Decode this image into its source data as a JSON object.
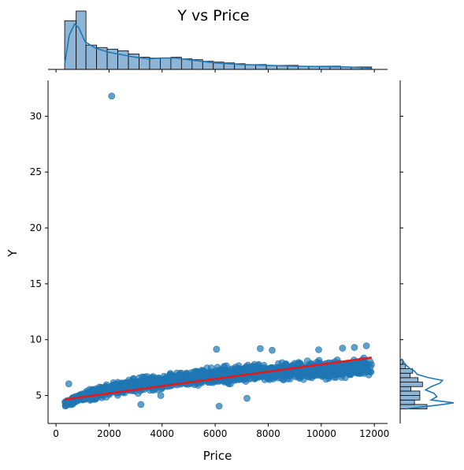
{
  "chart_data": {
    "type": "scatter",
    "title": "Y vs Price",
    "xlabel": "Price",
    "ylabel": "Y",
    "xlim": [
      -300,
      12500
    ],
    "ylim": [
      2.5,
      33.2
    ],
    "xticks": [
      0,
      2000,
      4000,
      6000,
      8000,
      10000,
      12000
    ],
    "yticks": [
      5,
      10,
      15,
      20,
      25,
      30
    ],
    "colors": {
      "points": "#1f77b4",
      "regression": "#e41a1c",
      "hist_fill": "#8fb5d6",
      "kde": "#1f77b4"
    },
    "regression": {
      "x": [
        326,
        11900
      ],
      "y": [
        4.65,
        8.4
      ]
    },
    "outliers": [
      {
        "x": 2100,
        "y": 31.8
      },
      {
        "x": 6050,
        "y": 9.15
      },
      {
        "x": 7700,
        "y": 9.2
      },
      {
        "x": 8150,
        "y": 9.05
      },
      {
        "x": 9900,
        "y": 9.1
      },
      {
        "x": 10800,
        "y": 9.25
      },
      {
        "x": 11250,
        "y": 9.3
      },
      {
        "x": 11700,
        "y": 9.45
      },
      {
        "x": 3200,
        "y": 4.2
      },
      {
        "x": 6150,
        "y": 4.05
      },
      {
        "x": 7200,
        "y": 4.75
      },
      {
        "x": 480,
        "y": 6.05
      },
      {
        "x": 3950,
        "y": 5.0
      }
    ],
    "band": [
      {
        "x": 330,
        "lo": 3.9,
        "hi": 4.6
      },
      {
        "x": 1000,
        "lo": 4.3,
        "hi": 5.5
      },
      {
        "x": 2000,
        "lo": 4.7,
        "hi": 6.3
      },
      {
        "x": 3000,
        "lo": 5.0,
        "hi": 6.8
      },
      {
        "x": 4000,
        "lo": 5.3,
        "hi": 7.1
      },
      {
        "x": 5000,
        "lo": 5.6,
        "hi": 7.4
      },
      {
        "x": 6000,
        "lo": 5.8,
        "hi": 7.7
      },
      {
        "x": 7000,
        "lo": 6.0,
        "hi": 7.9
      },
      {
        "x": 8000,
        "lo": 6.1,
        "hi": 8.1
      },
      {
        "x": 9000,
        "lo": 6.2,
        "hi": 8.3
      },
      {
        "x": 10000,
        "lo": 6.3,
        "hi": 8.4
      },
      {
        "x": 11000,
        "lo": 6.35,
        "hi": 8.5
      },
      {
        "x": 11900,
        "lo": 6.4,
        "hi": 8.6
      }
    ],
    "marginal_x": {
      "bin_edges": [
        326,
        760,
        1130,
        1530,
        1930,
        2330,
        2730,
        3130,
        3530,
        3930,
        4330,
        4730,
        5130,
        5530,
        5930,
        6330,
        6730,
        7130,
        7530,
        7930,
        8330,
        8730,
        9130,
        9530,
        9930,
        10330,
        10730,
        11130,
        11530,
        11900
      ],
      "counts": [
        60,
        72,
        30,
        27,
        25,
        23,
        19,
        15,
        14,
        14,
        15,
        13,
        12,
        10,
        9,
        8,
        7,
        6,
        6,
        5,
        5,
        5,
        4,
        4,
        4,
        4,
        3,
        3,
        3
      ],
      "kde": [
        [
          326,
          6
        ],
        [
          500,
          42
        ],
        [
          700,
          56
        ],
        [
          850,
          52
        ],
        [
          1100,
          34
        ],
        [
          1500,
          26
        ],
        [
          2000,
          21
        ],
        [
          2500,
          18
        ],
        [
          3000,
          15
        ],
        [
          3500,
          13
        ],
        [
          4000,
          14
        ],
        [
          4500,
          14
        ],
        [
          5000,
          12
        ],
        [
          5500,
          10
        ],
        [
          6000,
          8
        ],
        [
          7000,
          6
        ],
        [
          8000,
          5
        ],
        [
          9000,
          4
        ],
        [
          10000,
          3.5
        ],
        [
          11000,
          3
        ],
        [
          11900,
          1.5
        ]
      ]
    },
    "marginal_y": {
      "bin_edges": [
        3.8,
        4.2,
        4.6,
        5.0,
        5.4,
        5.8,
        6.2,
        6.6,
        7.0,
        7.4,
        7.8,
        8.2
      ],
      "counts": [
        30,
        16,
        22,
        22,
        12,
        25,
        20,
        11,
        14,
        6,
        3
      ],
      "kde": [
        [
          3.8,
          4
        ],
        [
          4.2,
          30
        ],
        [
          4.35,
          38
        ],
        [
          4.6,
          22
        ],
        [
          4.9,
          26
        ],
        [
          5.2,
          24
        ],
        [
          5.5,
          18
        ],
        [
          5.8,
          22
        ],
        [
          6.1,
          28
        ],
        [
          6.35,
          30
        ],
        [
          6.6,
          20
        ],
        [
          6.9,
          12
        ],
        [
          7.2,
          10
        ],
        [
          7.5,
          6
        ],
        [
          7.9,
          3
        ],
        [
          8.3,
          1
        ]
      ]
    }
  }
}
